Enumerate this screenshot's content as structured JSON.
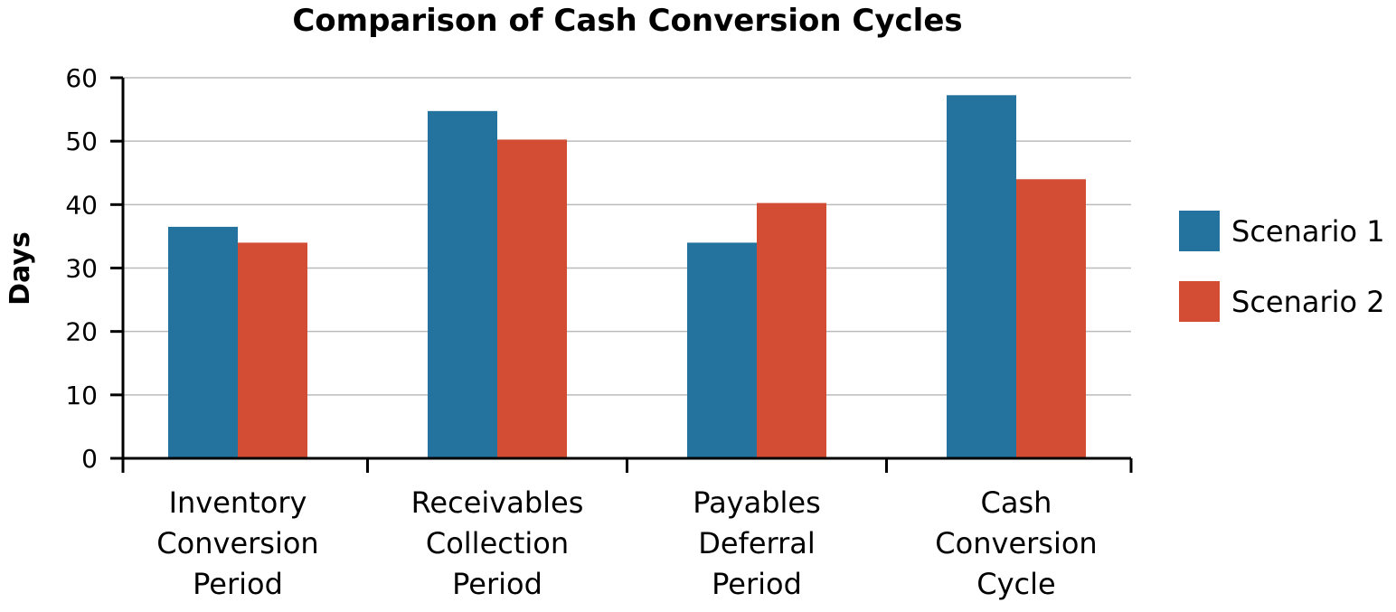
{
  "chart_data": {
    "type": "bar",
    "title": "Comparison of Cash Conversion Cycles",
    "xlabel": "",
    "ylabel": "Days",
    "ylim": [
      0,
      60
    ],
    "yticks": [
      0,
      10,
      20,
      30,
      40,
      50,
      60
    ],
    "grid": true,
    "legend_placement": "right",
    "categories": [
      [
        "Inventory",
        "Conversion",
        "Period"
      ],
      [
        "Receivables",
        "Collection",
        "Period"
      ],
      [
        "Payables",
        "Deferral",
        "Period"
      ],
      [
        "Cash",
        "Conversion",
        "Cycle"
      ]
    ],
    "series": [
      {
        "name": "Scenario 1",
        "color": "#23739e",
        "values": [
          36.5,
          54.75,
          34,
          57.25
        ]
      },
      {
        "name": "Scenario 2",
        "color": "#d24d33",
        "values": [
          34,
          50.25,
          40.25,
          44
        ]
      }
    ]
  }
}
